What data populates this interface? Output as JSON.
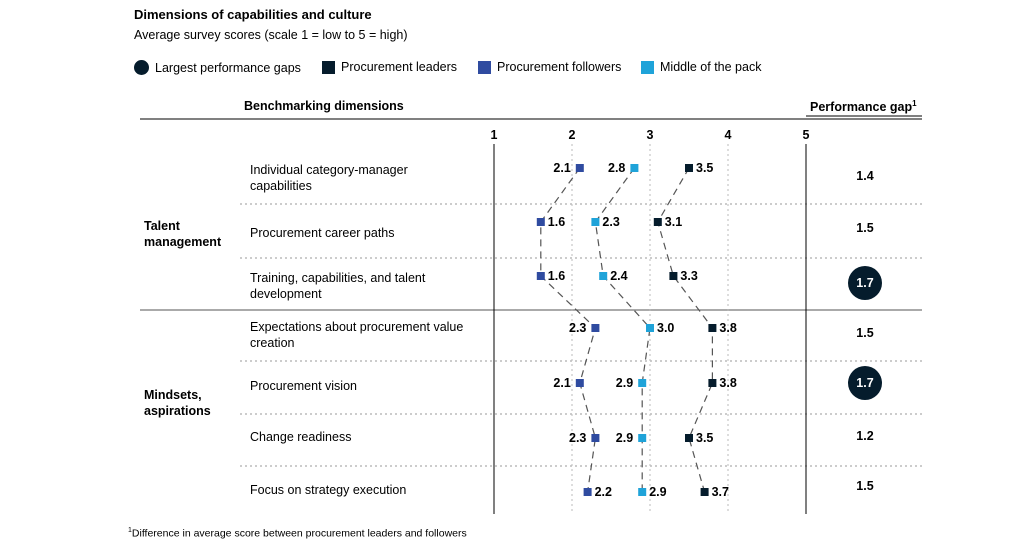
{
  "title": "Dimensions of capabilities and culture",
  "subtitle": "Average survey scores (scale 1 = low to 5 = high)",
  "legend": [
    {
      "label": "Largest performance gaps",
      "shape": "circle",
      "color": "#051c2c"
    },
    {
      "label": "Procurement leaders",
      "shape": "square",
      "color": "#051c2c"
    },
    {
      "label": "Procurement followers",
      "shape": "square",
      "color": "#2f4ba0"
    },
    {
      "label": "Middle of the pack",
      "shape": "square",
      "color": "#1fa3d9"
    }
  ],
  "header": {
    "dimensions": "Benchmarking dimensions",
    "gap": "Performance gap",
    "gap_sup": "1"
  },
  "footnote": {
    "sup": "1",
    "text": "Difference in average score between procurement leaders and followers"
  },
  "chart_data": {
    "type": "scatter",
    "xlim": [
      1,
      5
    ],
    "ticks": [
      "1",
      "2",
      "3",
      "4",
      "5"
    ],
    "groups": [
      {
        "label": "Talent management",
        "rows": [
          0,
          1,
          2
        ]
      },
      {
        "label": "Mindsets, aspirations",
        "rows": [
          3,
          4,
          5,
          6
        ]
      }
    ],
    "categories": [
      "Individual category-manager capabilities",
      "Procurement career paths",
      "Training, capabilities, and talent development",
      "Expectations about procurement value creation",
      "Procurement vision",
      "Change readiness",
      "Focus on strategy execution"
    ],
    "series": [
      {
        "name": "Procurement followers",
        "color": "#2f4ba0",
        "values": [
          2.1,
          1.6,
          1.6,
          2.3,
          2.1,
          2.3,
          2.2
        ],
        "labels": [
          "2.1",
          "1.6",
          "1.6",
          "2.3",
          "2.1",
          "2.3",
          "2.2"
        ]
      },
      {
        "name": "Middle of the pack",
        "color": "#1fa3d9",
        "values": [
          2.8,
          2.3,
          2.4,
          3.0,
          2.9,
          2.9,
          2.9
        ],
        "labels": [
          "2.8",
          "2.3",
          "2.4",
          "3.0",
          "2.9",
          "2.9",
          "2.9"
        ]
      },
      {
        "name": "Procurement leaders",
        "color": "#051c2c",
        "values": [
          3.5,
          3.1,
          3.3,
          3.8,
          3.8,
          3.5,
          3.7
        ],
        "labels": [
          "3.5",
          "3.1",
          "3.3",
          "3.8",
          "3.8",
          "3.5",
          "3.7"
        ]
      }
    ],
    "performance_gap": [
      "1.4",
      "1.5",
      "1.7",
      "1.5",
      "1.7",
      "1.2",
      "1.5"
    ],
    "largest_gap": [
      false,
      false,
      true,
      false,
      true,
      false,
      false
    ]
  }
}
